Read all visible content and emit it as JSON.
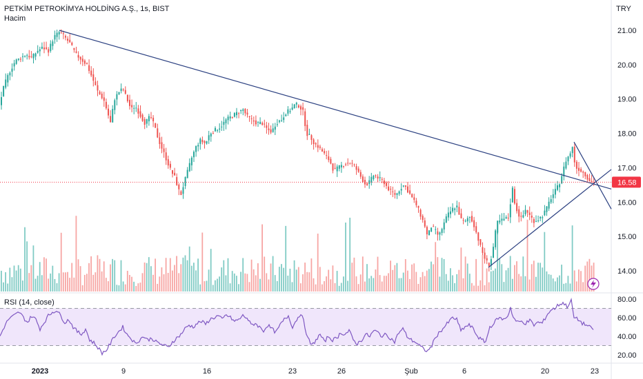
{
  "header": {
    "symbol": "PETKİM PETROKİMYA HOLDİNG A.Ş., 1s, BIST",
    "volume_label": "Hacim",
    "currency": "TRY"
  },
  "rsi": {
    "label": "RSI (14, close)"
  },
  "colors": {
    "up": "#26a69a",
    "down": "#ef5350",
    "up_vol": "#80cbc4",
    "down_vol": "#f7a5a3",
    "trendline": "#2a3f80",
    "rsi_line": "#7e57c2",
    "rsi_band": "#f0e6fb",
    "price_badge": "#f23645"
  },
  "chart_data": [
    {
      "type": "candlestick",
      "series_name": "Price",
      "ylim": [
        13.5,
        21.5
      ],
      "y_ticks": [
        "21.00",
        "20.00",
        "19.00",
        "18.00",
        "17.00",
        "16.00",
        "15.00",
        "14.00"
      ],
      "last_price": "16.58",
      "last_price_value": 16.58,
      "x_tick_labels": [
        "2023",
        "9",
        "16",
        "23",
        "26",
        "Şub",
        "6",
        "20",
        "23"
      ],
      "path": [
        [
          0,
          18.9
        ],
        [
          6,
          19.4
        ],
        [
          14,
          19.8
        ],
        [
          22,
          20.1
        ],
        [
          30,
          20.2
        ],
        [
          38,
          20.3
        ],
        [
          46,
          20.2
        ],
        [
          54,
          20.4
        ],
        [
          62,
          20.5
        ],
        [
          70,
          20.4
        ],
        [
          78,
          20.8
        ],
        [
          86,
          20.95
        ],
        [
          94,
          20.8
        ],
        [
          102,
          20.6
        ],
        [
          110,
          20.3
        ],
        [
          118,
          20.15
        ],
        [
          126,
          20.0
        ],
        [
          134,
          19.6
        ],
        [
          142,
          19.2
        ],
        [
          150,
          19.0
        ],
        [
          156,
          18.6
        ],
        [
          160,
          18.3
        ],
        [
          166,
          19.0
        ],
        [
          172,
          19.2
        ],
        [
          178,
          19.3
        ],
        [
          184,
          19.0
        ],
        [
          190,
          18.7
        ],
        [
          196,
          18.8
        ],
        [
          204,
          18.5
        ],
        [
          210,
          18.3
        ],
        [
          218,
          18.5
        ],
        [
          224,
          18.2
        ],
        [
          230,
          17.8
        ],
        [
          236,
          17.5
        ],
        [
          242,
          17.2
        ],
        [
          248,
          16.9
        ],
        [
          254,
          16.7
        ],
        [
          258,
          16.4
        ],
        [
          262,
          16.2
        ],
        [
          266,
          16.5
        ],
        [
          272,
          16.9
        ],
        [
          278,
          17.3
        ],
        [
          284,
          17.6
        ],
        [
          290,
          17.8
        ],
        [
          298,
          17.7
        ],
        [
          304,
          18.0
        ],
        [
          312,
          18.1
        ],
        [
          320,
          18.2
        ],
        [
          328,
          18.4
        ],
        [
          336,
          18.5
        ],
        [
          344,
          18.6
        ],
        [
          352,
          18.7
        ],
        [
          358,
          18.5
        ],
        [
          364,
          18.4
        ],
        [
          372,
          18.3
        ],
        [
          380,
          18.3
        ],
        [
          388,
          18.1
        ],
        [
          394,
          18.05
        ],
        [
          400,
          18.3
        ],
        [
          408,
          18.4
        ],
        [
          414,
          18.6
        ],
        [
          422,
          18.7
        ],
        [
          428,
          18.85
        ],
        [
          434,
          18.8
        ],
        [
          440,
          18.6
        ],
        [
          444,
          18.0
        ],
        [
          450,
          17.9
        ],
        [
          456,
          17.7
        ],
        [
          462,
          17.6
        ],
        [
          470,
          17.4
        ],
        [
          478,
          17.2
        ],
        [
          484,
          16.9
        ],
        [
          490,
          17.0
        ],
        [
          498,
          17.1
        ],
        [
          506,
          17.15
        ],
        [
          512,
          17.1
        ],
        [
          518,
          16.9
        ],
        [
          524,
          16.7
        ],
        [
          530,
          16.5
        ],
        [
          536,
          16.6
        ],
        [
          542,
          16.8
        ],
        [
          548,
          16.7
        ],
        [
          556,
          16.6
        ],
        [
          562,
          16.4
        ],
        [
          568,
          16.3
        ],
        [
          574,
          16.2
        ],
        [
          580,
          16.4
        ],
        [
          586,
          16.5
        ],
        [
          592,
          16.3
        ],
        [
          598,
          16.1
        ],
        [
          604,
          15.9
        ],
        [
          610,
          15.6
        ],
        [
          616,
          15.3
        ],
        [
          620,
          14.95
        ],
        [
          624,
          15.3
        ],
        [
          630,
          15.2
        ],
        [
          636,
          15.0
        ],
        [
          642,
          15.3
        ],
        [
          648,
          15.6
        ],
        [
          656,
          15.8
        ],
        [
          662,
          15.9
        ],
        [
          668,
          15.5
        ],
        [
          674,
          15.4
        ],
        [
          680,
          15.6
        ],
        [
          686,
          15.4
        ],
        [
          692,
          15.0
        ],
        [
          698,
          14.6
        ],
        [
          704,
          14.3
        ],
        [
          710,
          14.15
        ],
        [
          716,
          14.8
        ],
        [
          720,
          15.4
        ],
        [
          730,
          15.5
        ],
        [
          738,
          15.55
        ],
        [
          742,
          16.5
        ],
        [
          746,
          16.0
        ],
        [
          750,
          15.7
        ],
        [
          756,
          15.5
        ],
        [
          762,
          15.8
        ],
        [
          768,
          15.6
        ],
        [
          774,
          15.45
        ],
        [
          780,
          15.5
        ],
        [
          786,
          15.6
        ],
        [
          792,
          15.8
        ],
        [
          798,
          16.1
        ],
        [
          804,
          16.3
        ],
        [
          810,
          16.5
        ],
        [
          816,
          16.9
        ],
        [
          820,
          17.2
        ],
        [
          826,
          17.4
        ],
        [
          830,
          17.6
        ],
        [
          834,
          17.0
        ],
        [
          840,
          16.95
        ],
        [
          846,
          16.85
        ],
        [
          852,
          16.7
        ],
        [
          856,
          16.6
        ],
        [
          860,
          16.58
        ]
      ]
    },
    {
      "type": "line",
      "series_name": "RSI (14, close)",
      "ylim": [
        15,
        85
      ],
      "y_ticks": [
        "80.00",
        "60.00",
        "40.00",
        "20.00"
      ],
      "bands": [
        30,
        70
      ],
      "path": [
        [
          0,
          40
        ],
        [
          6,
          50
        ],
        [
          12,
          58
        ],
        [
          20,
          62
        ],
        [
          28,
          66
        ],
        [
          34,
          60
        ],
        [
          40,
          55
        ],
        [
          46,
          62
        ],
        [
          52,
          58
        ],
        [
          58,
          48
        ],
        [
          64,
          55
        ],
        [
          70,
          62
        ],
        [
          76,
          66
        ],
        [
          82,
          68
        ],
        [
          88,
          62
        ],
        [
          94,
          55
        ],
        [
          100,
          58
        ],
        [
          106,
          50
        ],
        [
          112,
          45
        ],
        [
          118,
          42
        ],
        [
          124,
          48
        ],
        [
          130,
          36
        ],
        [
          136,
          33
        ],
        [
          142,
          28
        ],
        [
          148,
          22
        ],
        [
          154,
          25
        ],
        [
          160,
          32
        ],
        [
          166,
          40
        ],
        [
          172,
          45
        ],
        [
          178,
          50
        ],
        [
          184,
          42
        ],
        [
          190,
          38
        ],
        [
          196,
          32
        ],
        [
          202,
          36
        ],
        [
          208,
          40
        ],
        [
          214,
          36
        ],
        [
          220,
          38
        ],
        [
          226,
          34
        ],
        [
          232,
          32
        ],
        [
          238,
          30
        ],
        [
          244,
          28
        ],
        [
          250,
          34
        ],
        [
          256,
          38
        ],
        [
          262,
          42
        ],
        [
          268,
          48
        ],
        [
          274,
          52
        ],
        [
          280,
          50
        ],
        [
          286,
          54
        ],
        [
          292,
          56
        ],
        [
          298,
          53
        ],
        [
          304,
          58
        ],
        [
          310,
          60
        ],
        [
          316,
          62
        ],
        [
          322,
          58
        ],
        [
          328,
          63
        ],
        [
          334,
          60
        ],
        [
          340,
          56
        ],
        [
          346,
          58
        ],
        [
          352,
          62
        ],
        [
          358,
          60
        ],
        [
          364,
          52
        ],
        [
          370,
          54
        ],
        [
          376,
          50
        ],
        [
          382,
          46
        ],
        [
          388,
          52
        ],
        [
          394,
          48
        ],
        [
          400,
          44
        ],
        [
          406,
          52
        ],
        [
          412,
          58
        ],
        [
          418,
          62
        ],
        [
          424,
          50
        ],
        [
          430,
          58
        ],
        [
          436,
          65
        ],
        [
          440,
          56
        ],
        [
          446,
          38
        ],
        [
          452,
          30
        ],
        [
          458,
          36
        ],
        [
          464,
          42
        ],
        [
          470,
          34
        ],
        [
          476,
          40
        ],
        [
          482,
          36
        ],
        [
          488,
          38
        ],
        [
          494,
          44
        ],
        [
          500,
          42
        ],
        [
          506,
          46
        ],
        [
          512,
          36
        ],
        [
          518,
          32
        ],
        [
          524,
          36
        ],
        [
          530,
          42
        ],
        [
          536,
          40
        ],
        [
          542,
          46
        ],
        [
          548,
          44
        ],
        [
          554,
          40
        ],
        [
          560,
          42
        ],
        [
          566,
          38
        ],
        [
          572,
          34
        ],
        [
          578,
          44
        ],
        [
          584,
          48
        ],
        [
          590,
          40
        ],
        [
          596,
          36
        ],
        [
          602,
          34
        ],
        [
          608,
          30
        ],
        [
          614,
          26
        ],
        [
          620,
          24
        ],
        [
          626,
          30
        ],
        [
          632,
          40
        ],
        [
          638,
          45
        ],
        [
          644,
          50
        ],
        [
          650,
          55
        ],
        [
          656,
          60
        ],
        [
          662,
          58
        ],
        [
          668,
          46
        ],
        [
          674,
          50
        ],
        [
          680,
          52
        ],
        [
          686,
          48
        ],
        [
          692,
          40
        ],
        [
          698,
          36
        ],
        [
          704,
          34
        ],
        [
          710,
          50
        ],
        [
          716,
          54
        ],
        [
          722,
          60
        ],
        [
          730,
          58
        ],
        [
          736,
          62
        ],
        [
          740,
          71
        ],
        [
          744,
          60
        ],
        [
          750,
          55
        ],
        [
          756,
          56
        ],
        [
          762,
          54
        ],
        [
          768,
          57
        ],
        [
          774,
          52
        ],
        [
          780,
          55
        ],
        [
          786,
          54
        ],
        [
          792,
          62
        ],
        [
          798,
          68
        ],
        [
          804,
          70
        ],
        [
          810,
          74
        ],
        [
          816,
          76
        ],
        [
          822,
          72
        ],
        [
          828,
          78
        ],
        [
          832,
          60
        ],
        [
          838,
          58
        ],
        [
          844,
          54
        ],
        [
          850,
          52
        ],
        [
          856,
          49
        ],
        [
          860,
          48
        ]
      ]
    }
  ]
}
